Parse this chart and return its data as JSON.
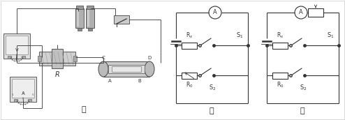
{
  "bg_color": "#ffffff",
  "fig_width": 4.94,
  "fig_height": 1.72,
  "dpi": 100,
  "line_color": "#333333",
  "gray_fill": "#cccccc",
  "dark_gray": "#888888",
  "light_gray": "#dddddd",
  "white": "#ffffff",
  "labels": {
    "jia": "甲",
    "yi": "乙",
    "bing": "丙",
    "R": "R",
    "C": "C",
    "D": "D",
    "A_node": "A",
    "B_node": "B"
  }
}
